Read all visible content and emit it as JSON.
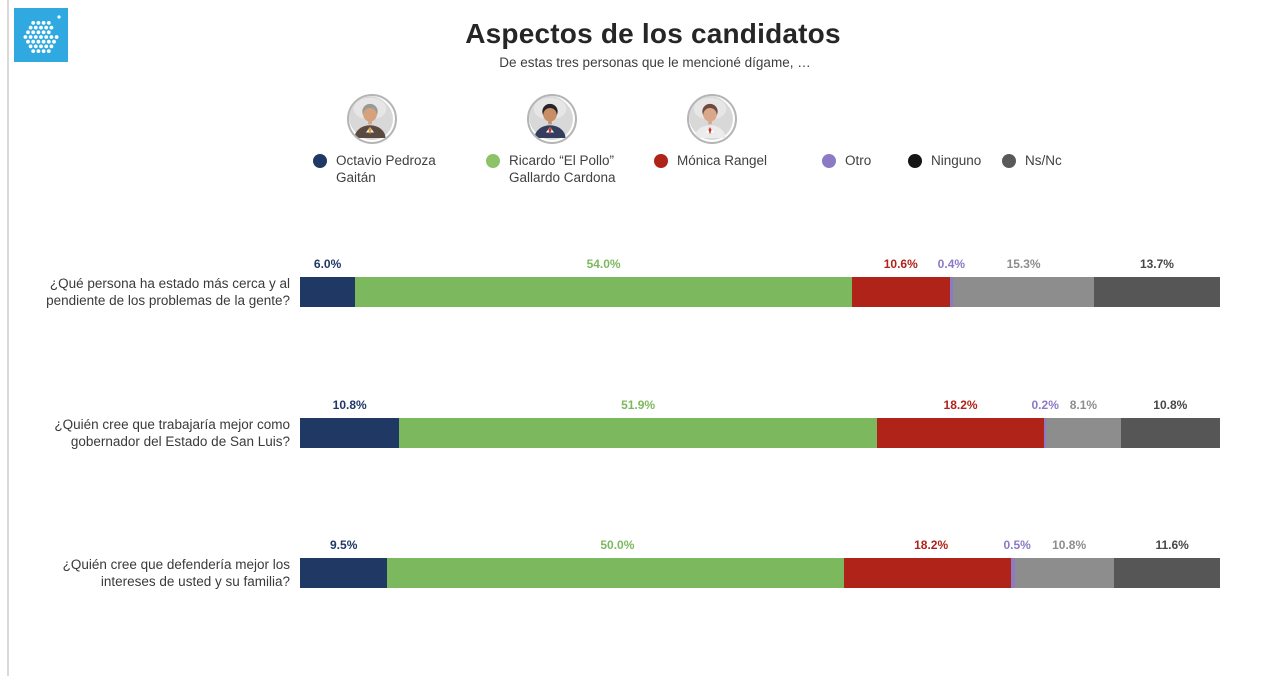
{
  "page": {
    "title": "Aspectos de los candidatos",
    "subtitle": "De estas tres personas que le mencioné dígame, …"
  },
  "logo": {
    "bg_color": "#2fa9e0",
    "dot_color": "#ffffff"
  },
  "avatars": [
    {
      "name": "avatar-octavio-pedroza-gaitan",
      "hair": "#9a9a94",
      "skin": "#d6a27c",
      "suit": "#5b4a3f",
      "shirt": "#f2f2f2",
      "tie": "#d9a53a"
    },
    {
      "name": "avatar-ricardo-gallardo-cardona",
      "hair": "#26242a",
      "skin": "#c88e66",
      "suit": "#343d5e",
      "shirt": "#f2f2f2",
      "tie": "#c0392b"
    },
    {
      "name": "avatar-monica-rangel",
      "hair": "#6e4a3f",
      "skin": "#d9a88a",
      "suit": "#ececec",
      "shirt": "#ffffff",
      "tie": "#c0392b"
    }
  ],
  "chart_data": {
    "type": "bar",
    "orientation": "horizontal",
    "stacked": true,
    "title": "Aspectos de los candidatos",
    "subtitle": "De estas tres personas que le mencioné dígame, …",
    "value_suffix": "%",
    "xlim": [
      0,
      100
    ],
    "legend_position": "top",
    "categories": [
      "¿Qué persona ha estado más cerca y al pendiente de los problemas de la gente?",
      "¿Quién cree que trabajaría mejor como gobernador del Estado de San Luis?",
      "¿Quién cree que defendería mejor los intereses de usted y su familia?"
    ],
    "series": [
      {
        "name": "Octavio Pedroza Gaitán",
        "color": "#1f3864",
        "values": [
          6.0,
          10.8,
          9.5
        ]
      },
      {
        "name": "Ricardo “El Pollo” Gallardo Cardona",
        "color": "#7cb95e",
        "legend_color": "#8cc368",
        "values": [
          54.0,
          51.9,
          50.0
        ]
      },
      {
        "name": "Mónica Rangel",
        "color": "#b02318",
        "values": [
          10.6,
          18.2,
          18.2
        ]
      },
      {
        "name": "Otro",
        "color": "#8d7ac4",
        "values": [
          0.4,
          0.2,
          0.5
        ]
      },
      {
        "name": "Ninguno",
        "color": "#8d8d8d",
        "legend_color": "#151515",
        "values": [
          15.3,
          8.1,
          10.8
        ]
      },
      {
        "name": "Ns/Nc",
        "color": "#565656",
        "legend_color": "#595959",
        "label_color": "#474747",
        "values": [
          13.7,
          10.8,
          11.6
        ]
      }
    ]
  }
}
